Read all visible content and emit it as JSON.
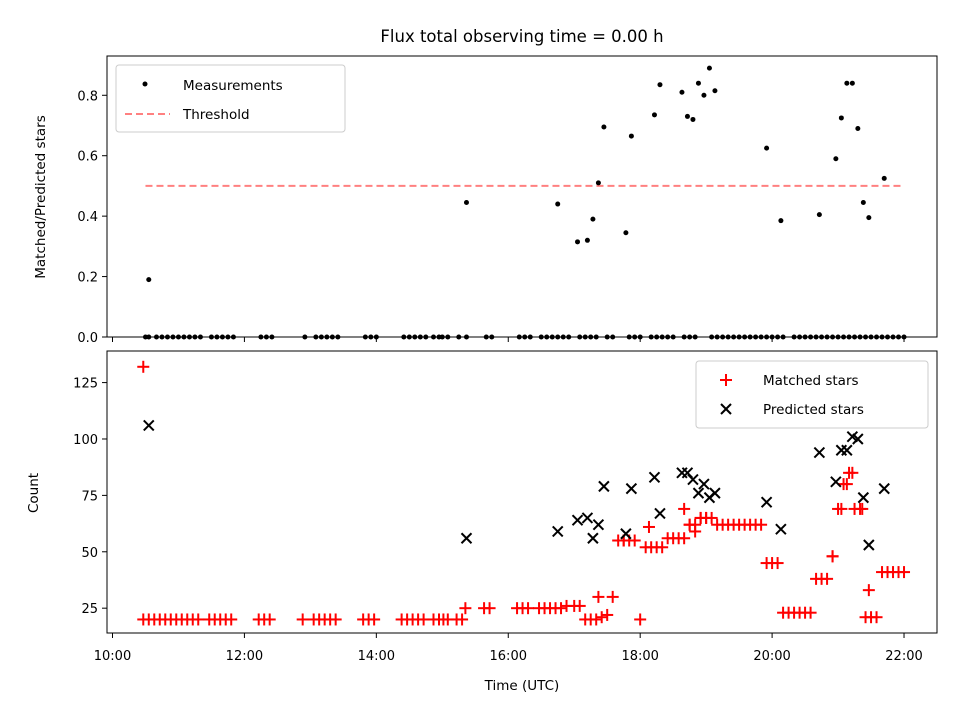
{
  "chart_data": [
    {
      "type": "scatter",
      "title": "Flux total observing time = 0.00 h",
      "xlabel": "",
      "ylabel": "Matched/Predicted stars",
      "xlim": [
        "09:55",
        "22:30"
      ],
      "ylim": [
        0,
        0.93
      ],
      "yticks": [
        0.0,
        0.2,
        0.4,
        0.6,
        0.8
      ],
      "ytick_labels": [
        "0.0",
        "0.2",
        "0.4",
        "0.6",
        "0.8"
      ],
      "legend_position": "upper left",
      "series": [
        {
          "name": "Measurements",
          "marker": "dot",
          "color": "#000000",
          "x": [
            "10:30",
            "10:33",
            "10:40",
            "10:45",
            "10:50",
            "10:55",
            "11:00",
            "11:05",
            "11:10",
            "11:15",
            "11:20",
            "11:30",
            "11:35",
            "11:40",
            "11:45",
            "11:50",
            "12:15",
            "12:20",
            "12:25",
            "12:55",
            "13:05",
            "13:10",
            "13:15",
            "13:20",
            "13:25",
            "13:50",
            "13:55",
            "14:00",
            "14:25",
            "14:30",
            "14:35",
            "14:40",
            "14:45",
            "14:52",
            "14:57",
            "15:00",
            "15:05",
            "15:15",
            "15:22",
            "15:40",
            "15:45",
            "16:10",
            "16:15",
            "16:20",
            "16:30",
            "16:35",
            "16:40",
            "16:45",
            "16:50",
            "16:55",
            "17:05",
            "17:10",
            "17:15",
            "17:20",
            "17:30",
            "17:35",
            "17:50",
            "17:55",
            "18:00",
            "18:10",
            "18:15",
            "18:20",
            "18:25",
            "18:30",
            "18:40",
            "18:45",
            "18:50",
            "19:05",
            "19:10",
            "19:15",
            "19:20",
            "19:25",
            "19:30",
            "19:35",
            "19:40",
            "19:45",
            "19:50",
            "19:55",
            "20:00",
            "20:05",
            "20:10",
            "20:20",
            "20:25",
            "20:30",
            "20:35",
            "20:40",
            "20:45",
            "20:50",
            "20:55",
            "21:00",
            "21:05",
            "21:10",
            "21:15",
            "21:20",
            "21:25",
            "21:30",
            "21:35",
            "21:40",
            "21:45",
            "21:50",
            "21:55",
            "22:00",
            "10:33",
            "15:22",
            "16:45",
            "17:03",
            "17:12",
            "17:17",
            "17:22",
            "17:27",
            "17:47",
            "17:52",
            "18:13",
            "18:18",
            "18:38",
            "18:43",
            "18:48",
            "18:53",
            "18:58",
            "19:03",
            "19:08",
            "19:55",
            "20:08",
            "20:43",
            "20:58",
            "21:03",
            "21:08",
            "21:13",
            "21:18",
            "21:23",
            "21:28",
            "21:42"
          ],
          "y": [
            0,
            0,
            0,
            0,
            0,
            0,
            0,
            0,
            0,
            0,
            0,
            0,
            0,
            0,
            0,
            0,
            0,
            0,
            0,
            0,
            0,
            0,
            0,
            0,
            0,
            0,
            0,
            0,
            0,
            0,
            0,
            0,
            0,
            0,
            0,
            0,
            0,
            0,
            0,
            0,
            0,
            0,
            0,
            0,
            0,
            0,
            0,
            0,
            0,
            0,
            0,
            0,
            0,
            0,
            0,
            0,
            0,
            0,
            0,
            0,
            0,
            0,
            0,
            0,
            0,
            0,
            0,
            0,
            0,
            0,
            0,
            0,
            0,
            0,
            0,
            0,
            0,
            0,
            0,
            0,
            0,
            0,
            0,
            0,
            0,
            0,
            0,
            0,
            0,
            0,
            0,
            0,
            0,
            0,
            0,
            0,
            0,
            0,
            0,
            0,
            0,
            0,
            0.19,
            0.445,
            0.44,
            0.315,
            0.32,
            0.39,
            0.51,
            0.695,
            0.345,
            0.665,
            0.735,
            0.835,
            0.81,
            0.73,
            0.72,
            0.84,
            0.8,
            0.89,
            0.815,
            0.625,
            0.385,
            0.405,
            0.59,
            0.725,
            0.84,
            0.84,
            0.69,
            0.445,
            0.395,
            0.525
          ]
        },
        {
          "name": "Threshold",
          "marker": "dashed-line",
          "color": "#ff8080",
          "x": [
            "10:30",
            "22:00"
          ],
          "y": [
            0.5,
            0.5
          ]
        }
      ]
    },
    {
      "type": "scatter",
      "title": "",
      "xlabel": "Time (UTC)",
      "ylabel": "Count",
      "xlim": [
        "09:55",
        "22:30"
      ],
      "xticks": [
        "10:00",
        "12:00",
        "14:00",
        "16:00",
        "18:00",
        "20:00",
        "22:00"
      ],
      "xtick_labels": [
        "10:00",
        "12:00",
        "14:00",
        "16:00",
        "18:00",
        "20:00",
        "22:00"
      ],
      "ylim": [
        14,
        139
      ],
      "yticks": [
        25,
        50,
        75,
        100,
        125
      ],
      "ytick_labels": [
        "25",
        "50",
        "75",
        "100",
        "125"
      ],
      "legend_position": "upper right",
      "series": [
        {
          "name": "Matched stars",
          "marker": "plus",
          "color": "#ff0000",
          "x": [
            "10:28",
            "10:33",
            "10:38",
            "10:43",
            "10:48",
            "10:53",
            "10:58",
            "11:03",
            "11:08",
            "11:13",
            "11:18",
            "11:28",
            "11:33",
            "11:38",
            "11:43",
            "11:48",
            "12:13",
            "12:18",
            "12:23",
            "12:53",
            "13:03",
            "13:08",
            "13:13",
            "13:18",
            "13:23",
            "13:48",
            "13:53",
            "13:58",
            "14:23",
            "14:28",
            "14:33",
            "14:38",
            "14:43",
            "14:52",
            "14:57",
            "15:01",
            "15:05",
            "15:13",
            "15:18",
            "15:21",
            "15:38",
            "15:43",
            "16:08",
            "16:13",
            "16:18",
            "16:28",
            "16:33",
            "16:38",
            "16:43",
            "16:48",
            "16:53",
            "17:00",
            "17:05",
            "17:10",
            "17:15",
            "17:20",
            "17:25",
            "17:30",
            "17:35",
            "17:40",
            "17:45",
            "17:50",
            "17:55",
            "18:00",
            "18:05",
            "18:10",
            "18:15",
            "18:20",
            "18:25",
            "18:30",
            "18:35",
            "18:40",
            "18:45",
            "18:50",
            "18:55",
            "19:00",
            "19:05",
            "19:10",
            "19:15",
            "19:20",
            "19:25",
            "19:30",
            "19:35",
            "19:40",
            "19:45",
            "19:50",
            "19:55",
            "20:00",
            "20:05",
            "20:10",
            "20:15",
            "20:20",
            "20:25",
            "20:30",
            "20:35",
            "20:40",
            "20:45",
            "20:50",
            "20:55",
            "21:00",
            "21:05",
            "21:10",
            "21:15",
            "21:20",
            "21:25",
            "21:30",
            "21:35",
            "21:40",
            "21:45",
            "21:50",
            "21:55",
            "22:00",
            "10:28",
            "17:22",
            "17:45",
            "18:08",
            "18:40",
            "18:45",
            "18:50",
            "18:55",
            "19:00",
            "20:55",
            "21:03",
            "21:08",
            "21:13",
            "21:22",
            "21:28"
          ],
          "y": [
            20,
            20,
            20,
            20,
            20,
            20,
            20,
            20,
            20,
            20,
            20,
            20,
            20,
            20,
            20,
            20,
            20,
            20,
            20,
            20,
            20,
            20,
            20,
            20,
            20,
            20,
            20,
            20,
            20,
            20,
            20,
            20,
            20,
            20,
            20,
            20,
            20,
            20,
            20,
            25,
            25,
            25,
            25,
            25,
            25,
            25,
            25,
            25,
            25,
            25,
            26,
            26,
            26,
            20,
            20,
            20,
            21,
            22,
            30,
            55,
            55,
            55,
            55,
            20,
            52,
            52,
            52,
            52,
            56,
            56,
            56,
            56,
            62,
            62,
            65,
            65,
            65,
            62,
            62,
            62,
            62,
            62,
            62,
            62,
            62,
            62,
            45,
            45,
            45,
            23,
            23,
            23,
            23,
            23,
            23,
            38,
            38,
            38,
            48,
            69,
            80,
            85,
            69,
            69,
            21,
            21,
            21,
            41,
            41,
            41,
            41,
            41,
            132,
            30,
            55,
            61,
            69,
            62,
            59,
            65,
            65,
            48,
            69,
            80,
            85,
            69,
            33
          ],
          "note_x_indices_omit": null
        },
        {
          "name": "Predicted stars",
          "marker": "x",
          "color": "#000000",
          "x": [
            "10:33",
            "15:22",
            "16:45",
            "17:03",
            "17:12",
            "17:17",
            "17:22",
            "17:27",
            "17:47",
            "17:52",
            "18:13",
            "18:18",
            "18:38",
            "18:43",
            "18:48",
            "18:53",
            "18:58",
            "19:03",
            "19:08",
            "19:55",
            "20:08",
            "20:43",
            "20:58",
            "21:03",
            "21:08",
            "21:13",
            "21:18",
            "21:23",
            "21:28",
            "21:42"
          ],
          "y": [
            106,
            56,
            59,
            64,
            65,
            56,
            62,
            79,
            58,
            78,
            83,
            67,
            85,
            85,
            82,
            76,
            80,
            74,
            76,
            72,
            60,
            94,
            81,
            95,
            95,
            101,
            100,
            74,
            53,
            78
          ]
        }
      ]
    }
  ]
}
